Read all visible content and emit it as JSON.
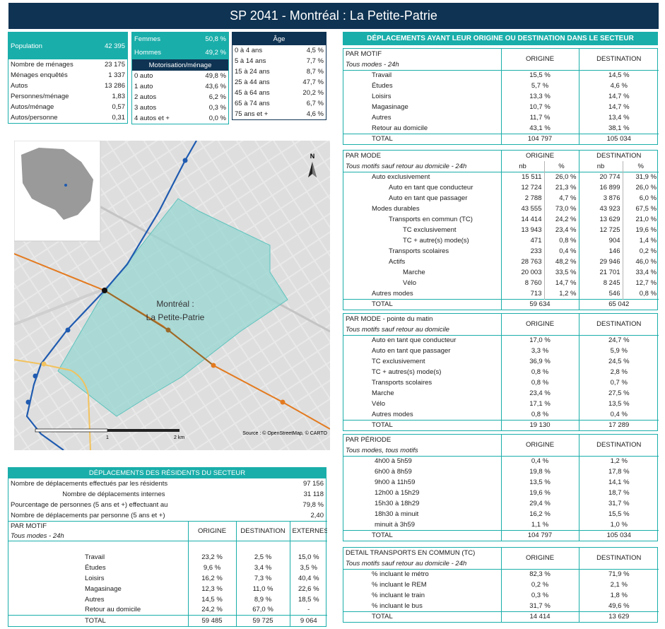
{
  "title": "SP 2041 - Montréal : La Petite-Patrie",
  "stats": {
    "population_label": "Population",
    "population_value": "42 395",
    "rows": [
      {
        "label": "Nombre de ménages",
        "value": "23 175"
      },
      {
        "label": "Ménages enquêtés",
        "value": "1 337"
      },
      {
        "label": "Autos",
        "value": "13 286"
      },
      {
        "label": "Personnes/ménage",
        "value": "1,83"
      },
      {
        "label": "Autos/ménage",
        "value": "0,57"
      },
      {
        "label": "Autos/personne",
        "value": "0,31"
      }
    ]
  },
  "gender": {
    "femmes_label": "Femmes",
    "femmes_value": "50,8 %",
    "hommes_label": "Hommes",
    "hommes_value": "49,2 %",
    "motor_title": "Motorisation/ménage",
    "motor_rows": [
      {
        "label": "0 auto",
        "value": "49,8 %"
      },
      {
        "label": "1 auto",
        "value": "43,6 %"
      },
      {
        "label": "2 autos",
        "value": "6,2 %"
      },
      {
        "label": "3 autos",
        "value": "0,3 %"
      },
      {
        "label": "4 autos et +",
        "value": "0,0 %"
      }
    ]
  },
  "age": {
    "title": "Âge",
    "rows": [
      {
        "label": "0 à 4 ans",
        "value": "4,5 %"
      },
      {
        "label": "5 à 14 ans",
        "value": "7,7 %"
      },
      {
        "label": "15 à 24 ans",
        "value": "8,7 %"
      },
      {
        "label": "25 à 44 ans",
        "value": "47,7 %"
      },
      {
        "label": "45 à 64 ans",
        "value": "20,2 %"
      },
      {
        "label": "65 à 74 ans",
        "value": "6,7 %"
      },
      {
        "label": "75 ans et +",
        "value": "4,6 %"
      }
    ]
  },
  "map": {
    "label_line1": "Montréal :",
    "label_line2": "La Petite-Patrie",
    "north": "N",
    "scale_1": "1",
    "scale_2": "2 km",
    "source": "Source : © OpenStreetMap, © CARTO"
  },
  "residents": {
    "title": "DÉPLACEMENTS DES RÉSIDENTS DU SECTEUR",
    "summary": [
      {
        "label": "Nombre de déplacements effectués par les résidents",
        "value": "97 156"
      },
      {
        "label": "Nombre de déplacements internes",
        "value": "31 118"
      },
      {
        "label": "Pourcentage de personnes (5 ans et +) effectuant au moins un déplacement",
        "value": "79,8 %"
      },
      {
        "label": "Nombre de déplacements par personne (5 ans et +)",
        "value": "2,40"
      }
    ],
    "head": "PAR MOTIF",
    "sub": "Tous modes - 24h",
    "col1": "ORIGINE",
    "col2": "DESTINATION",
    "col3": "EXTERNES",
    "rows": [
      {
        "label": "Travail",
        "o": "23,2 %",
        "d": "2,5 %",
        "e": "15,0 %"
      },
      {
        "label": "Études",
        "o": "9,6 %",
        "d": "3,4 %",
        "e": "3,5 %"
      },
      {
        "label": "Loisirs",
        "o": "16,2 %",
        "d": "7,3 %",
        "e": "40,4 %"
      },
      {
        "label": "Magasinage",
        "o": "12,3 %",
        "d": "11,0 %",
        "e": "22,6 %"
      },
      {
        "label": "Autres",
        "o": "14,5 %",
        "d": "8,9 %",
        "e": "18,5 %"
      },
      {
        "label": "Retour au domicile",
        "o": "24,2 %",
        "d": "67,0 %",
        "e": "-"
      }
    ],
    "total": {
      "label": "TOTAL",
      "o": "59 485",
      "d": "59 725",
      "e": "9 064"
    }
  },
  "right": {
    "title": "DÉPLACEMENTS AYANT LEUR ORIGINE OU DESTINATION DANS LE SECTEUR",
    "motif": {
      "head": "PAR MOTIF",
      "sub": "Tous modes - 24h",
      "col1": "ORIGINE",
      "col2": "DESTINATION",
      "rows": [
        {
          "label": "Travail",
          "o": "15,5 %",
          "d": "14,5 %"
        },
        {
          "label": "Études",
          "o": "5,7 %",
          "d": "4,6 %"
        },
        {
          "label": "Loisirs",
          "o": "13,3 %",
          "d": "14,7 %"
        },
        {
          "label": "Magasinage",
          "o": "10,7 %",
          "d": "14,7 %"
        },
        {
          "label": "Autres",
          "o": "11,7 %",
          "d": "13,4 %"
        },
        {
          "label": "Retour au domicile",
          "o": "43,1 %",
          "d": "38,1 %"
        }
      ],
      "total": {
        "label": "TOTAL",
        "o": "104 797",
        "d": "105 034"
      }
    },
    "mode": {
      "head": "PAR MODE",
      "sub": "Tous motifs sauf retour au domicile - 24h",
      "col1": "ORIGINE",
      "col2": "DESTINATION",
      "nb": "nb",
      "pct": "%",
      "rows": [
        {
          "label": "Auto exclusivement",
          "indent": 1,
          "on": "15 511",
          "op": "26,0 %",
          "dn": "20 774",
          "dp": "31,9 %"
        },
        {
          "label": "Auto en tant que conducteur",
          "indent": 2,
          "on": "12 724",
          "op": "21,3 %",
          "dn": "16 899",
          "dp": "26,0 %"
        },
        {
          "label": "Auto en tant que passager",
          "indent": 2,
          "on": "2 788",
          "op": "4,7 %",
          "dn": "3 876",
          "dp": "6,0 %"
        },
        {
          "label": "Modes durables",
          "indent": 1,
          "on": "43 555",
          "op": "73,0 %",
          "dn": "43 923",
          "dp": "67,5 %"
        },
        {
          "label": "Transports en commun (TC)",
          "indent": 2,
          "on": "14 414",
          "op": "24,2 %",
          "dn": "13 629",
          "dp": "21,0 %"
        },
        {
          "label": "TC exclusivement",
          "indent": 3,
          "on": "13 943",
          "op": "23,4 %",
          "dn": "12 725",
          "dp": "19,6 %"
        },
        {
          "label": "TC + autre(s) mode(s)",
          "indent": 3,
          "on": "471",
          "op": "0,8 %",
          "dn": "904",
          "dp": "1,4 %"
        },
        {
          "label": "Transports scolaires",
          "indent": 2,
          "on": "233",
          "op": "0,4 %",
          "dn": "146",
          "dp": "0,2 %"
        },
        {
          "label": "Actifs",
          "indent": 2,
          "on": "28 763",
          "op": "48,2 %",
          "dn": "29 946",
          "dp": "46,0 %"
        },
        {
          "label": "Marche",
          "indent": 3,
          "on": "20 003",
          "op": "33,5 %",
          "dn": "21 701",
          "dp": "33,4 %"
        },
        {
          "label": "Vélo",
          "indent": 3,
          "on": "8 760",
          "op": "14,7 %",
          "dn": "8 245",
          "dp": "12,7 %"
        },
        {
          "label": "Autres modes",
          "indent": 1,
          "on": "713",
          "op": "1,2 %",
          "dn": "546",
          "dp": "0,8 %"
        }
      ],
      "total": {
        "label": "TOTAL",
        "o": "59 634",
        "d": "65 042"
      }
    },
    "pointe": {
      "head": "PAR MODE - pointe du matin",
      "sub": "Tous motifs sauf retour au domicile",
      "col1": "ORIGINE",
      "col2": "DESTINATION",
      "rows": [
        {
          "label": "Auto en tant que conducteur",
          "o": "17,0 %",
          "d": "24,7 %"
        },
        {
          "label": "Auto en tant que passager",
          "o": "3,3 %",
          "d": "5,9 %"
        },
        {
          "label": "TC exclusivement",
          "o": "36,9 %",
          "d": "24,5 %"
        },
        {
          "label": "TC + autres(s) mode(s)",
          "o": "0,8 %",
          "d": "2,8 %"
        },
        {
          "label": "Transports scolaires",
          "o": "0,8 %",
          "d": "0,7 %"
        },
        {
          "label": "Marche",
          "o": "23,4 %",
          "d": "27,5 %"
        },
        {
          "label": "Vélo",
          "o": "17,1 %",
          "d": "13,5 %"
        },
        {
          "label": "Autres modes",
          "o": "0,8 %",
          "d": "0,4 %"
        }
      ],
      "total": {
        "label": "TOTAL",
        "o": "19 130",
        "d": "17 289"
      }
    },
    "periode": {
      "head": "PAR PÉRIODE",
      "sub": "Tous modes, tous motifs",
      "col1": "ORIGINE",
      "col2": "DESTINATION",
      "rows": [
        {
          "label": "4h00  à  5h59",
          "o": "0,4 %",
          "d": "1,2 %"
        },
        {
          "label": "6h00  à  8h59",
          "o": "19,8 %",
          "d": "17,8 %"
        },
        {
          "label": "9h00  à 11h59",
          "o": "13,5 %",
          "d": "14,1 %"
        },
        {
          "label": "12h00 à 15h29",
          "o": "19,6 %",
          "d": "18,7 %"
        },
        {
          "label": "15h30 à 18h29",
          "o": "29,4 %",
          "d": "31,7 %"
        },
        {
          "label": "18h30 à minuit",
          "o": "16,2 %",
          "d": "15,5 %"
        },
        {
          "label": "minuit à 3h59",
          "o": "1,1 %",
          "d": "1,0 %"
        }
      ],
      "total": {
        "label": "TOTAL",
        "o": "104 797",
        "d": "105 034"
      }
    },
    "tc": {
      "head": "DETAIL TRANSPORTS EN COMMUN (TC)",
      "sub": "Tous motifs sauf retour au domicile - 24h",
      "col1": "ORIGINE",
      "col2": "DESTINATION",
      "rows": [
        {
          "label": "% incluant le métro",
          "o": "82,3 %",
          "d": "71,9 %"
        },
        {
          "label": "% incluant le REM",
          "o": "0,2 %",
          "d": "2,1 %"
        },
        {
          "label": "% incluant le train",
          "o": "0,3 %",
          "d": "1,8 %"
        },
        {
          "label": "% incluant le bus",
          "o": "31,7 %",
          "d": "49,6 %"
        }
      ],
      "total": {
        "label": "TOTAL",
        "o": "14 414",
        "d": "13 629"
      }
    }
  }
}
